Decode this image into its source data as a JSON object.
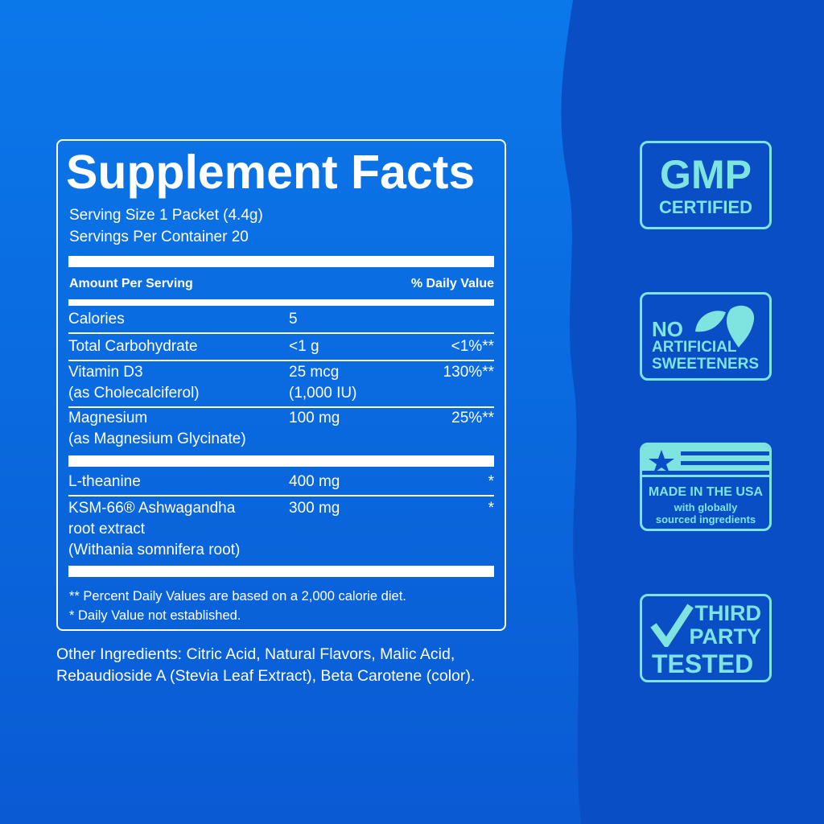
{
  "panel": {
    "title": "Supplement Facts",
    "serving_size": "Serving Size 1 Packet (4.4g)",
    "servings_per_container": "Servings Per Container 20",
    "header": {
      "amount": "Amount Per Serving",
      "daily_value": "% Daily Value"
    },
    "rows": [
      {
        "name": [
          "Calories"
        ],
        "amount": [
          "5"
        ]
      },
      {
        "name": [
          "Total Carbohydrate"
        ],
        "amount": [
          "<1 g"
        ],
        "dv": "<1%**"
      },
      {
        "name": [
          "Vitamin D3",
          "(as Cholecalciferol)"
        ],
        "amount": [
          "25 mcg",
          "(1,000 IU)"
        ],
        "dv": "130%**"
      },
      {
        "name": [
          "Magnesium",
          "(as Magnesium Glycinate)"
        ],
        "amount": [
          "100 mg"
        ],
        "dv": "25%**"
      },
      {
        "name": [
          "L-theanine"
        ],
        "amount": [
          "400 mg"
        ],
        "dv": "*"
      },
      {
        "name": [
          "KSM-66® Ashwagandha",
          "root extract",
          "(Withania somnifera root)"
        ],
        "amount": [
          "300 mg"
        ],
        "dv": "*"
      }
    ],
    "footnotes": [
      "** Percent Daily Values are based on a 2,000 calorie diet.",
      "* Daily Value not established."
    ]
  },
  "other_ingredients": [
    "Other Ingredients: Citric Acid, Natural Flavors, Malic Acid,",
    "Rebaudioside A (Stevia Leaf Extract), Beta Carotene (color)."
  ],
  "badges": [
    {
      "lines": [
        "GMP",
        "CERTIFIED"
      ]
    },
    {
      "lines": [
        "NO",
        "ARTIFICIAL",
        "SWEETENERS"
      ]
    },
    {
      "lines": [
        "MADE IN THE USA",
        "with globally",
        "sourced ingredients"
      ]
    },
    {
      "lines": [
        "THIRD",
        "PARTY",
        "TESTED"
      ]
    }
  ]
}
